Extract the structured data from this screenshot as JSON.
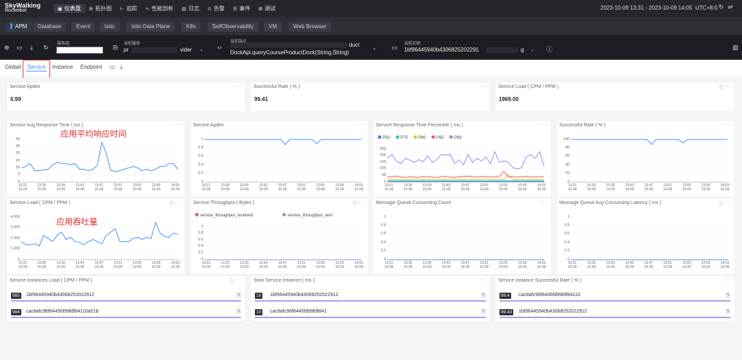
{
  "brand": {
    "line1": "SkyWalking",
    "line2": "Rocketbot"
  },
  "nav": [
    {
      "icon": "dashboard-icon",
      "glyph": "▣",
      "label": "仪表盘",
      "active": true
    },
    {
      "icon": "topology-icon",
      "glyph": "⊞",
      "label": "拓扑图"
    },
    {
      "icon": "trace-icon",
      "glyph": "⊢",
      "label": "追踪"
    },
    {
      "icon": "profile-icon",
      "glyph": "∿",
      "label": "性能剖析"
    },
    {
      "icon": "log-icon",
      "glyph": "▤",
      "label": "日志"
    },
    {
      "icon": "alarm-icon",
      "glyph": "⊙",
      "label": "告警"
    },
    {
      "icon": "event-icon",
      "glyph": "☰",
      "label": "事件"
    },
    {
      "icon": "debug-icon",
      "glyph": "⊠",
      "label": "调试"
    }
  ],
  "time_range": "2023-10-09 13:31 - 2023-10-09 14:05",
  "timezone": "UTC+8:0",
  "layers": [
    "APM",
    "Database",
    "Event",
    "Istio",
    "Istio Data Plane",
    "K8s",
    "SelfObservability",
    "VM",
    "Web Browser"
  ],
  "selectors": {
    "service_group_label": "服务组",
    "current_service_label": "当前服务",
    "current_service_prefix": "pr",
    "current_service_suffix": "vider",
    "current_endpoint_label": "当前端点",
    "current_endpoint_line1_suffix": "duct",
    "current_endpoint_line2": "DockApi.queryCourseProductDock(String,String)",
    "current_instance_label": "当前实例",
    "current_instance_value": "1bf96445940b4306825202291",
    "current_instance_suffix": "g"
  },
  "tabs": [
    "Global",
    "Service",
    "Instance",
    "Endpoint"
  ],
  "cards": {
    "apdex": {
      "title": "Service Apdex",
      "value": "0.99"
    },
    "success_rate": {
      "title": "Successful Rate ( % )",
      "value": "99.41"
    },
    "load": {
      "title": "Service Load ( CPM / PPM )",
      "value": "1969.00"
    },
    "avg_rt": {
      "title": "Service Avg Response Time ( ms )",
      "annotation": "应用平均响应时间"
    },
    "apdex_chart": {
      "title": "Service Apdex"
    },
    "percentile": {
      "title": "Service Response Time Percentile ( ms )"
    },
    "success_chart": {
      "title": "Successful Rate ( % )"
    },
    "load_chart": {
      "title": "Service Load ( CPM / PPM )",
      "annotation": "应用吞吐量"
    },
    "throughput": {
      "title": "Service Throughput ( Bytes )"
    },
    "mq_count": {
      "title": "Message Queue Consuming Count"
    },
    "mq_latency": {
      "title": "Message Queue Avg Consuming Latency ( ms )"
    },
    "instances_load": {
      "title": "Service Instances Load ( CPM / PPM )"
    },
    "slow_instance": {
      "title": "Slow Service Instance ( ms )"
    },
    "instance_success": {
      "title": "Service Instance Successful Rate ( % )"
    }
  },
  "lists": {
    "instances_load": [
      {
        "badge": "985",
        "name": "1bf96445940b43068252022912"
      },
      {
        "badge": "984",
        "name": "cac8afc96f8445fd99fdf84110a51b"
      }
    ],
    "slow_instance": [
      {
        "badge": "10",
        "name": "1bf96445940b43068252022912"
      },
      {
        "badge": "10",
        "name": "cac8afc96f8445fd99fdf841"
      }
    ],
    "instance_success": [
      {
        "badge": "99.4",
        "name": "cac8afc96f8445fd99fdf84110"
      },
      {
        "badge": "99.43",
        "name": "1bf96445940b43068252022912"
      }
    ]
  },
  "x_ticks": [
    "13:31\n10-09",
    "13:35\n10-09",
    "13:39\n10-09",
    "13:43\n10-09",
    "13:47\n10-09",
    "13:51\n10-09",
    "13:55\n10-09",
    "13:59\n10-09",
    "14:03\n10-09"
  ],
  "colors": {
    "line": "#448dfe",
    "p50": "#3a7bf5",
    "p75": "#2ec4b6",
    "p90": "#f5b82e",
    "p95": "#f25656",
    "p99": "#8e8de8",
    "received": "#f25656",
    "sent": "#8e8de8",
    "annotation": "#e02b26"
  },
  "chart_data": [
    {
      "type": "line",
      "title": "Service Avg Response Time ( ms )",
      "ylim": [
        0,
        30
      ],
      "y_ticks": [
        "30",
        "25",
        "20",
        "15",
        "10",
        "5",
        "0"
      ],
      "series": [
        {
          "values": [
            10,
            11,
            13,
            8,
            8,
            8.5,
            9,
            12,
            14,
            13,
            13,
            12,
            13,
            9,
            9,
            8,
            9,
            12,
            28,
            20,
            8,
            7.5,
            8,
            9,
            10,
            11,
            10,
            8,
            9,
            8,
            9,
            11,
            11,
            13,
            13,
            9
          ]
        }
      ]
    },
    {
      "type": "line",
      "title": "Service Apdex",
      "ylim": [
        0,
        1
      ],
      "y_ticks": [
        "1",
        "0.8",
        "0.6",
        "0.4",
        "0.2",
        "0"
      ],
      "series": [
        {
          "values": [
            1,
            1,
            1,
            1,
            1,
            1,
            1,
            1,
            1,
            1,
            1,
            1,
            1,
            1,
            1,
            1,
            1,
            1,
            0.88,
            1,
            1,
            1,
            1,
            1,
            1,
            0.9,
            1,
            1,
            1,
            1,
            1,
            1,
            1,
            1,
            1,
            1
          ]
        }
      ]
    },
    {
      "type": "line",
      "title": "Service Response Time Percentile ( ms )",
      "ylim": [
        0,
        250
      ],
      "y_ticks": [
        "250",
        "200",
        "150",
        "100",
        "50",
        "0"
      ],
      "legend": [
        "P50",
        "P75",
        "P90",
        "P95",
        "P99"
      ],
      "series": [
        {
          "name": "P50",
          "values": [
            5,
            5,
            5,
            5,
            5,
            5,
            5,
            5,
            5,
            5,
            5,
            5,
            5,
            5,
            5,
            5,
            5,
            5,
            5,
            5,
            5,
            5,
            5,
            5,
            5,
            5,
            5,
            5,
            5,
            5,
            5,
            5,
            5,
            5,
            5,
            5
          ]
        },
        {
          "name": "P75",
          "values": [
            10,
            10,
            10,
            10,
            10,
            10,
            10,
            10,
            10,
            10,
            10,
            10,
            10,
            10,
            10,
            10,
            10,
            10,
            10,
            10,
            10,
            10,
            10,
            10,
            10,
            10,
            10,
            10,
            10,
            10,
            10,
            10,
            10,
            10,
            10,
            10
          ]
        },
        {
          "name": "P90",
          "values": [
            20,
            20,
            22,
            20,
            20,
            20,
            22,
            20,
            20,
            20,
            22,
            20,
            20,
            20,
            22,
            20,
            20,
            20,
            22,
            20,
            20,
            20,
            25,
            20,
            20,
            22,
            20,
            60,
            20,
            20,
            22,
            20,
            20,
            20,
            22,
            20
          ]
        },
        {
          "name": "P95",
          "values": [
            40,
            40,
            45,
            38,
            35,
            40,
            38,
            35,
            42,
            40,
            38,
            36,
            40,
            42,
            38,
            35,
            40,
            42,
            45,
            40,
            38,
            42,
            40,
            38,
            40,
            42,
            80,
            40,
            42,
            38,
            40,
            42,
            40,
            38,
            40,
            42
          ]
        },
        {
          "name": "P99",
          "values": [
            180,
            210,
            160,
            140,
            180,
            165,
            150,
            170,
            155,
            200,
            150,
            170,
            210,
            205,
            210,
            140,
            170,
            130,
            210,
            150,
            180,
            160,
            190,
            140,
            230,
            150,
            160,
            150,
            110,
            100,
            110,
            190,
            210,
            180,
            230,
            120
          ]
        }
      ]
    },
    {
      "type": "line",
      "title": "Successful Rate ( % )",
      "ylim": [
        0,
        100
      ],
      "y_ticks": [
        "100",
        "80",
        "60",
        "40",
        "20",
        "0"
      ],
      "series": [
        {
          "values": [
            100,
            100,
            100,
            100,
            100,
            100,
            100,
            100,
            100,
            100,
            100,
            100,
            100,
            100,
            100,
            100,
            100,
            100,
            88,
            100,
            100,
            100,
            100,
            100,
            100,
            92,
            100,
            100,
            100,
            100,
            100,
            100,
            100,
            100,
            100,
            100
          ]
        }
      ]
    },
    {
      "type": "line",
      "title": "Service Load ( CPM / PPM )",
      "ylim": [
        0,
        4000
      ],
      "y_ticks": [
        "4,000",
        "3,000",
        "2,000",
        "1,000",
        "0"
      ],
      "series": [
        {
          "values": [
            1700,
            1400,
            1400,
            1500,
            1300,
            2300,
            2000,
            1700,
            2300,
            2600,
            1900,
            2100,
            1700,
            1600,
            1400,
            1700,
            1900,
            1700,
            1500,
            2300,
            2600,
            2900,
            1700,
            1700,
            1700,
            2000,
            2100,
            1900,
            2100,
            2000,
            3500,
            2500,
            2200,
            2100,
            2500,
            2400
          ]
        }
      ]
    },
    {
      "type": "line",
      "title": "Service Throughput ( Bytes )",
      "ylim": [
        0,
        1
      ],
      "y_ticks": [
        "1",
        "0.8",
        "0.6",
        "0.4",
        "0.2",
        "0"
      ],
      "legend": [
        "service_throughput_received",
        "service_throughput_sent"
      ],
      "series": [
        {
          "name": "service_throughput_received",
          "values": [
            0,
            0
          ]
        },
        {
          "name": "service_throughput_sent",
          "values": [
            0,
            0
          ]
        }
      ]
    },
    {
      "type": "line",
      "title": "Message Queue Consuming Count",
      "ylim": [
        0,
        1
      ],
      "y_ticks": [
        "1",
        "0.8",
        "0.6",
        "0.4",
        "0.2",
        "0"
      ],
      "series": [
        {
          "values": [
            0,
            0
          ]
        }
      ]
    },
    {
      "type": "line",
      "title": "Message Queue Avg Consuming Latency ( ms )",
      "ylim": [
        0,
        1
      ],
      "y_ticks": [
        "1",
        "0.8",
        "0.6",
        "0.4",
        "0.2",
        "0"
      ],
      "series": [
        {
          "values": [
            0,
            0
          ]
        }
      ]
    }
  ]
}
